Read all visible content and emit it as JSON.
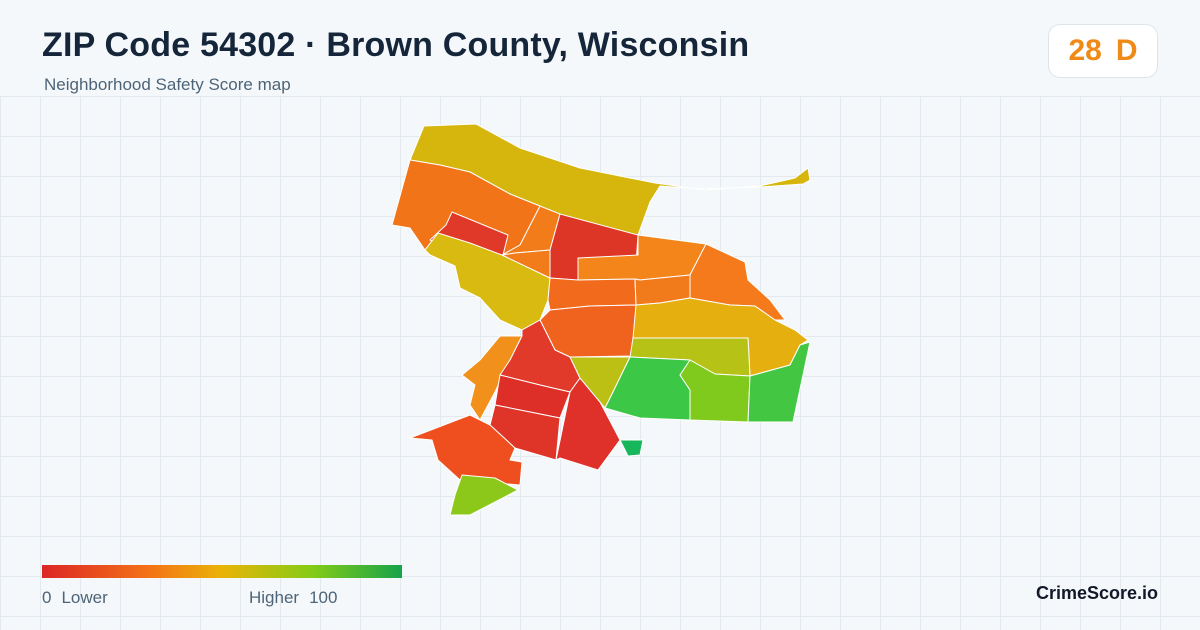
{
  "header": {
    "title": "ZIP Code 54302 · Brown County, Wisconsin",
    "subtitle": "Neighborhood Safety Score map"
  },
  "score_badge": {
    "score": "28",
    "grade": "D",
    "color": "#f08a17"
  },
  "legend": {
    "min_value": "0",
    "min_label": "Lower",
    "max_label": "Higher",
    "max_value": "100",
    "colors": [
      "#dc2626",
      "#f47316",
      "#eab308",
      "#84cc16",
      "#16a34a"
    ]
  },
  "brand": "CrimeScore.io",
  "map": {
    "regions": [
      {
        "id": "north-strip",
        "color": "#d6b50c"
      },
      {
        "id": "northwest",
        "color": "#f27419"
      },
      {
        "id": "northwest-inner",
        "color": "#e0392a"
      },
      {
        "id": "north-center-left",
        "color": "#f27c1a"
      },
      {
        "id": "north-center",
        "color": "#dd3526"
      },
      {
        "id": "west-yellow",
        "color": "#d8ba10"
      },
      {
        "id": "center-small",
        "color": "#f27c1a"
      },
      {
        "id": "east-upper",
        "color": "#f3851b"
      },
      {
        "id": "east-upper-right",
        "color": "#f47a1c"
      },
      {
        "id": "center-band-left",
        "color": "#f26b1c"
      },
      {
        "id": "center-band-mid",
        "color": "#f17b1b"
      },
      {
        "id": "center-middle",
        "color": "#f0631e"
      },
      {
        "id": "east-middle-yellow",
        "color": "#e6af10"
      },
      {
        "id": "east-lower-yellow",
        "color": "#b6c216"
      },
      {
        "id": "south-orange-left",
        "color": "#f1901b"
      },
      {
        "id": "south-red-1",
        "color": "#e23a2a"
      },
      {
        "id": "south-red-2",
        "color": "#dd2f28"
      },
      {
        "id": "south-red-3",
        "color": "#df3529"
      },
      {
        "id": "south-red-4",
        "color": "#e0302a"
      },
      {
        "id": "south-yellow-green",
        "color": "#bcc015"
      },
      {
        "id": "southeast-green",
        "color": "#3cc747"
      },
      {
        "id": "southeast-lime",
        "color": "#80c91d"
      },
      {
        "id": "far-east-green",
        "color": "#43c743"
      },
      {
        "id": "southwest-orange",
        "color": "#ef4f1e"
      },
      {
        "id": "southwest-green",
        "color": "#8cc81a"
      },
      {
        "id": "small-green",
        "color": "#17b65a"
      }
    ]
  }
}
